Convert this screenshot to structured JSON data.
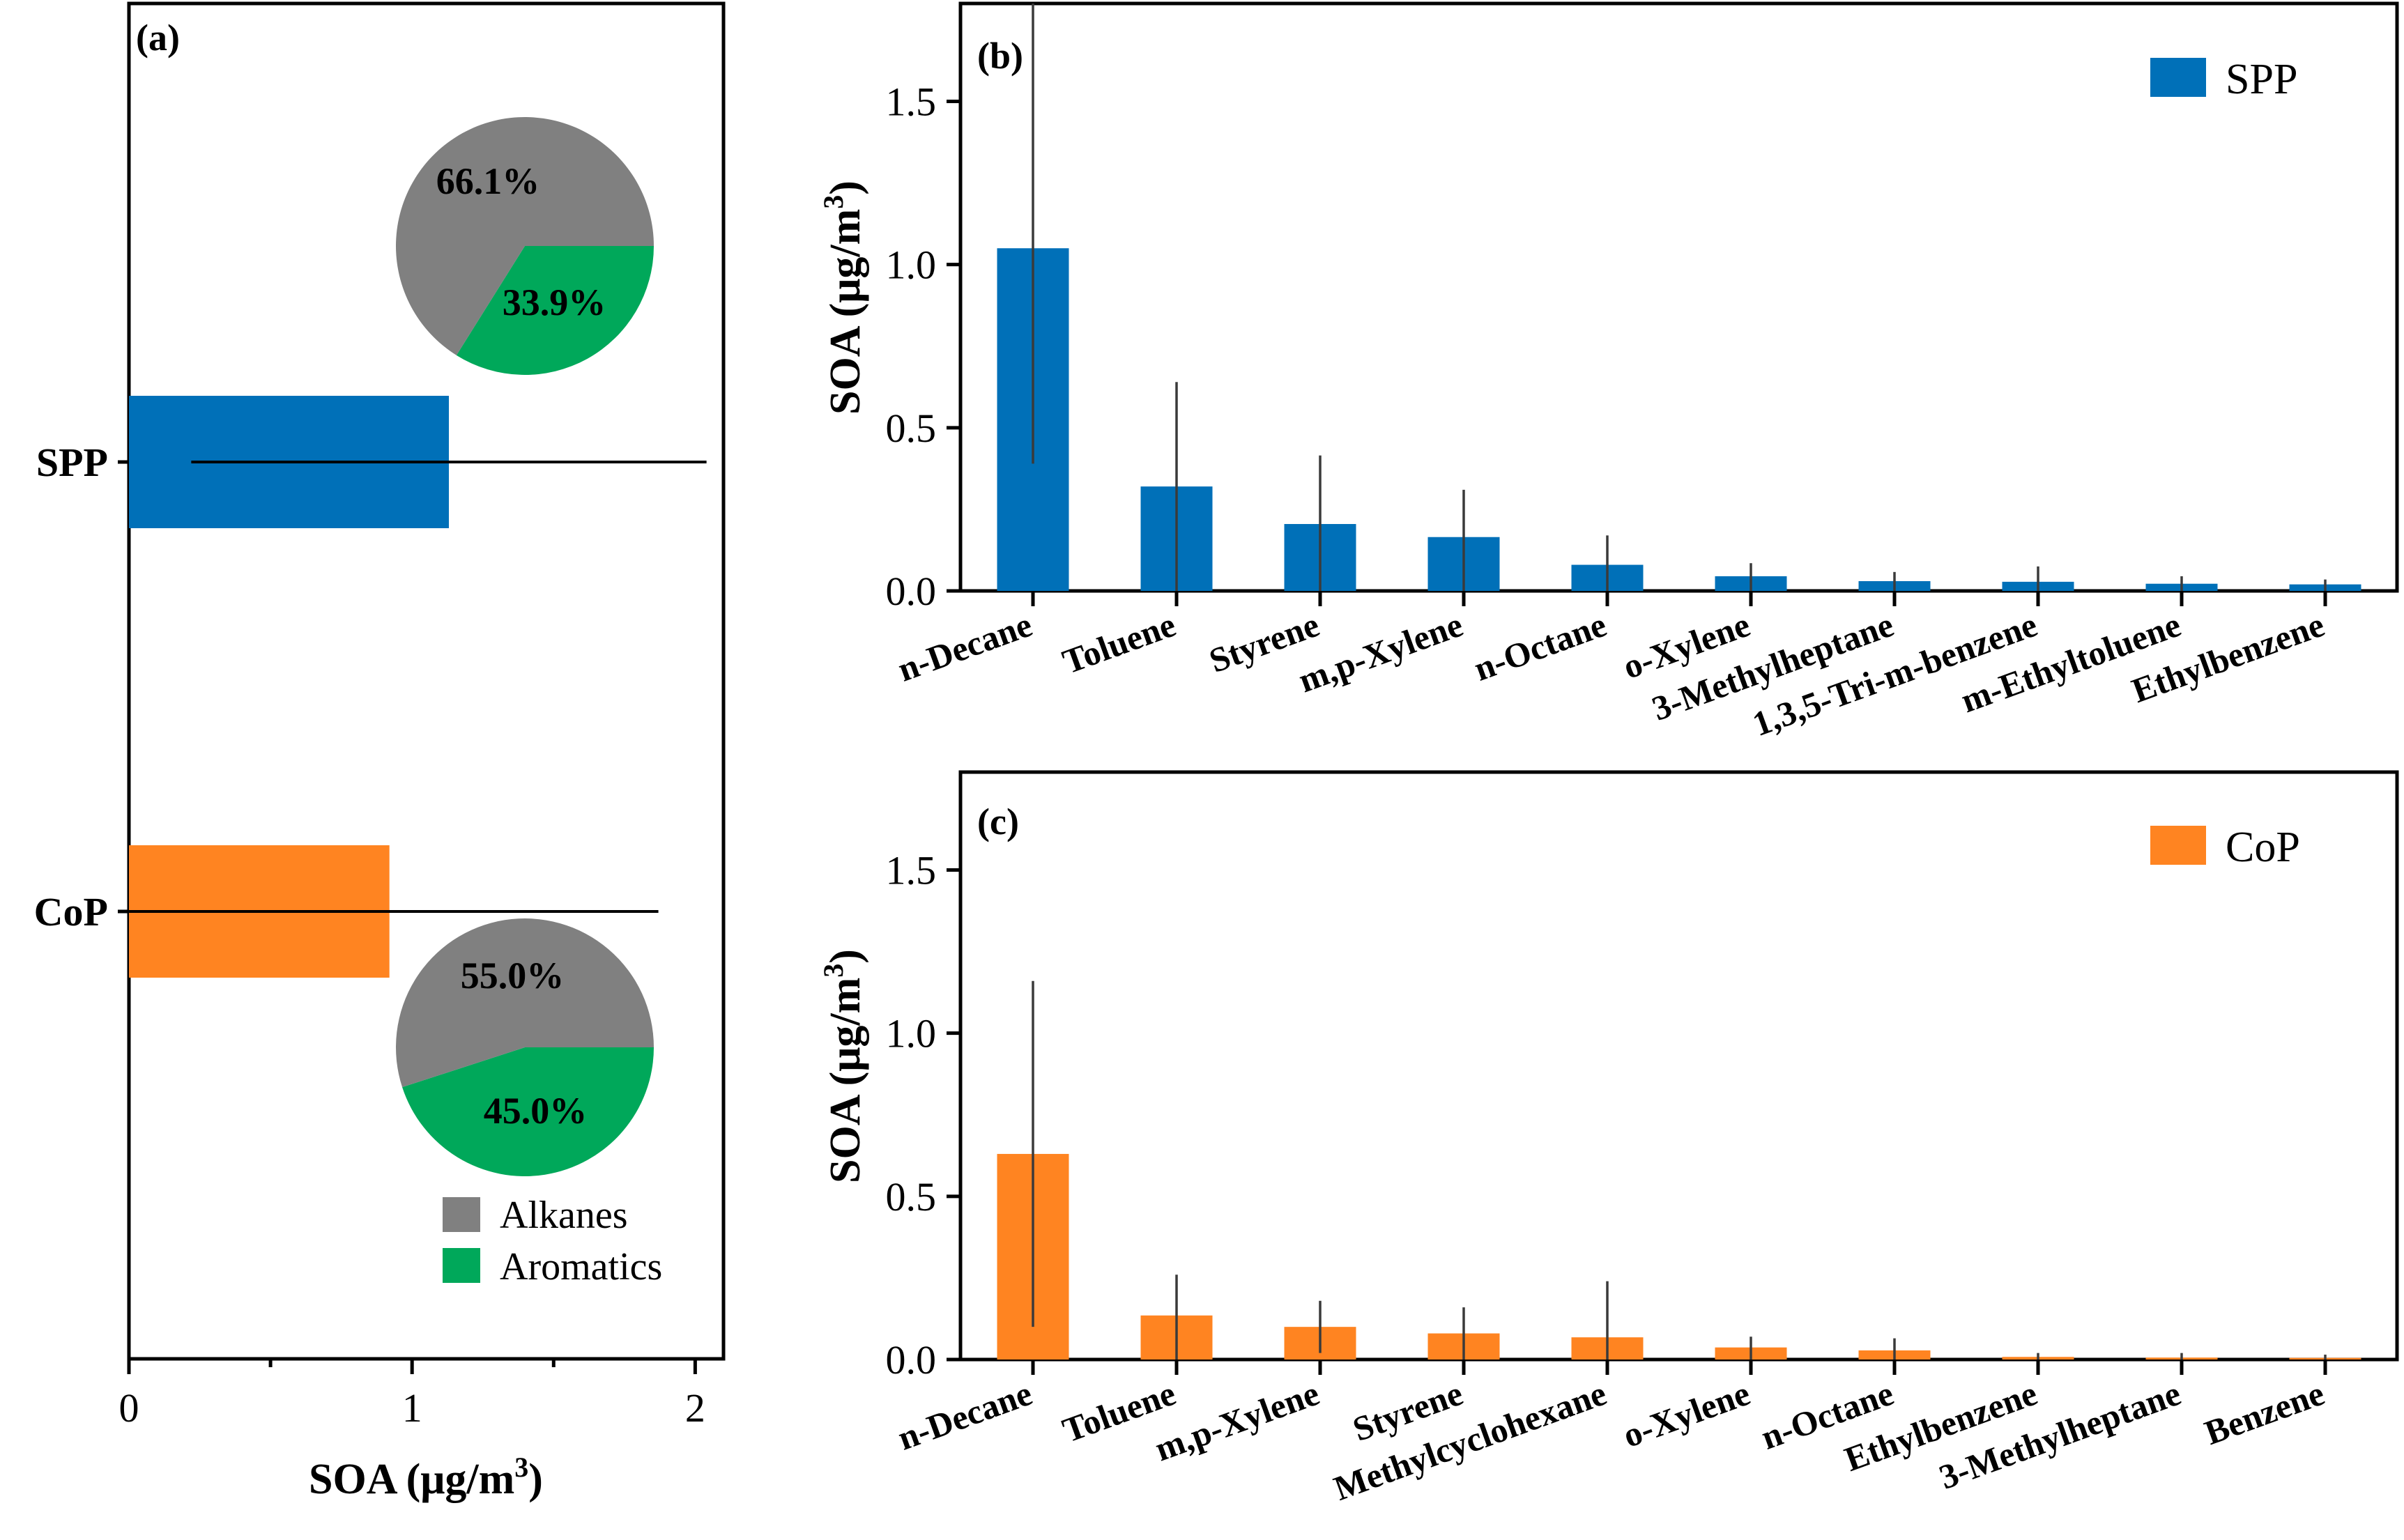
{
  "colors": {
    "spp": "#0070B8",
    "cop": "#FF8421",
    "alkanes": "#808080",
    "aromatics": "#00A85A",
    "errorbar": "#3a3a3a"
  },
  "chart_data": [
    {
      "id": "a",
      "type": "bar",
      "orientation": "horizontal",
      "panel_label": "(a)",
      "categories": [
        "SPP",
        "CoP"
      ],
      "values": [
        1.13,
        0.92
      ],
      "error_low": [
        0.22,
        0.0
      ],
      "error_high": [
        2.04,
        1.87
      ],
      "xlabel_main": "SOA (μg/m",
      "xlabel_sup": "3",
      "xlabel_end": ")",
      "xlim": [
        0,
        2.1
      ],
      "xticks": [
        0,
        1,
        2
      ],
      "xtick_labels": [
        "0",
        "1",
        "2"
      ],
      "pies": [
        {
          "name": "SPP",
          "slices": [
            {
              "label": "Alkanes",
              "value": 66.1,
              "text": "66.1%"
            },
            {
              "label": "Aromatics",
              "value": 33.9,
              "text": "33.9%"
            }
          ]
        },
        {
          "name": "CoP",
          "slices": [
            {
              "label": "Alkanes",
              "value": 55.0,
              "text": "55.0%"
            },
            {
              "label": "Aromatics",
              "value": 45.0,
              "text": "45.0%"
            }
          ]
        }
      ],
      "legend": [
        "Alkanes",
        "Aromatics"
      ]
    },
    {
      "id": "b",
      "type": "bar",
      "panel_label": "(b)",
      "series_name": "SPP",
      "categories": [
        "n-Decane",
        "Toluene",
        "Styrene",
        "m,p-Xylene",
        "n-Octane",
        "o-Xylene",
        "3-Methylheptane",
        "1,3,5-Tri-m-benzene",
        "m-Ethyltoluene",
        "Ethylbenzene"
      ],
      "values": [
        1.05,
        0.32,
        0.205,
        0.165,
        0.08,
        0.045,
        0.03,
        0.028,
        0.022,
        0.02
      ],
      "error_low": [
        0.39,
        0.0,
        0.0,
        0.0,
        0.0,
        0.0,
        0.0,
        0.0,
        0.0,
        0.0
      ],
      "error_high": [
        1.8,
        0.64,
        0.415,
        0.31,
        0.17,
        0.085,
        0.058,
        0.075,
        0.045,
        0.035
      ],
      "ylabel_main": "SOA (μg/m",
      "ylabel_sup": "3",
      "ylabel_end": ")",
      "ylim": [
        0,
        1.8
      ],
      "yticks": [
        0,
        0.5,
        1.0,
        1.5
      ],
      "ytick_labels": [
        "0.0",
        "0.5",
        "1.0",
        "1.5"
      ]
    },
    {
      "id": "c",
      "type": "bar",
      "panel_label": "(c)",
      "series_name": "CoP",
      "categories": [
        "n-Decane",
        "Toluene",
        "m,p-Xylene",
        "Styrene",
        "Methylcyclohexane",
        "o-Xylene",
        "n-Octane",
        "Ethylbenzene",
        "3-Methylheptane",
        "Benzene"
      ],
      "values": [
        0.63,
        0.135,
        0.1,
        0.08,
        0.068,
        0.037,
        0.028,
        0.008,
        0.006,
        0.005
      ],
      "error_low": [
        0.1,
        0.0,
        0.02,
        0.0,
        0.0,
        0.0,
        0.0,
        0.0,
        0.0,
        0.0
      ],
      "error_high": [
        1.16,
        0.26,
        0.18,
        0.16,
        0.24,
        0.07,
        0.065,
        0.02,
        0.02,
        0.015
      ],
      "ylabel_main": "SOA (μg/m",
      "ylabel_sup": "3",
      "ylabel_end": ")",
      "ylim": [
        0,
        1.8
      ],
      "yticks": [
        0,
        0.5,
        1.0,
        1.5
      ],
      "ytick_labels": [
        "0.0",
        "0.5",
        "1.0",
        "1.5"
      ]
    }
  ]
}
